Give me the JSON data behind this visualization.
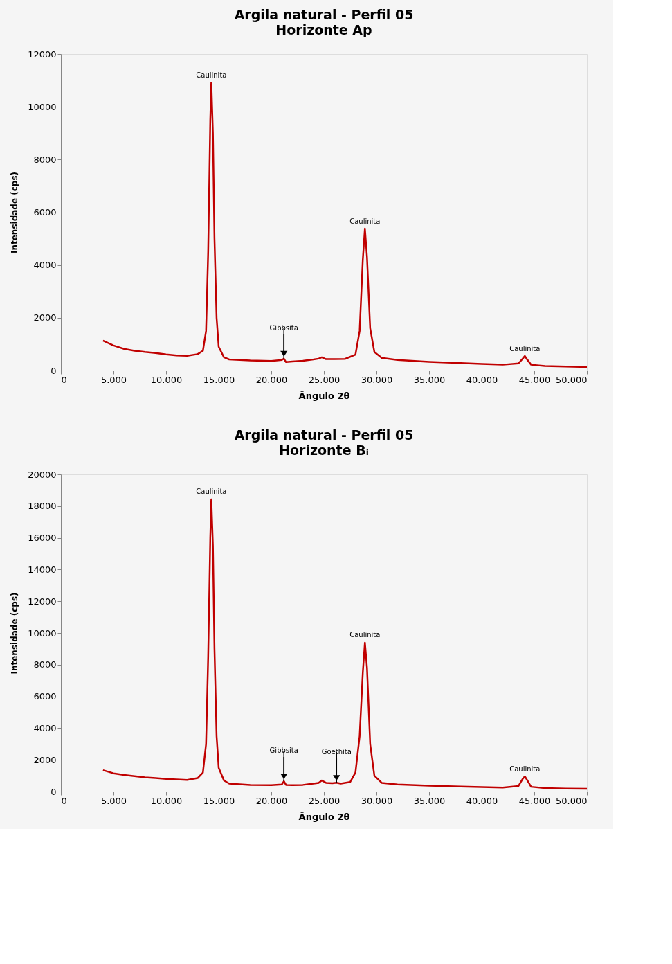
{
  "chart_data": [
    {
      "type": "line",
      "title": "Argila natural - Perfil 05",
      "subtitle": "Horizonte  Ap",
      "xlabel": "Ângulo 2θ",
      "ylabel": "Intensidade (cps)",
      "x": [
        4000,
        5000,
        6000,
        7000,
        8000,
        9000,
        10000,
        11000,
        12000,
        13000,
        13500,
        13800,
        14000,
        14200,
        14300,
        14450,
        14600,
        14800,
        15000,
        15500,
        16000,
        18000,
        20000,
        21000,
        21200,
        21400,
        22000,
        23000,
        24000,
        24500,
        24800,
        25200,
        26000,
        27000,
        28000,
        28400,
        28700,
        28900,
        29100,
        29400,
        29800,
        30500,
        32000,
        35000,
        38000,
        40000,
        42000,
        43500,
        43900,
        44100,
        44300,
        44700,
        46000,
        48000,
        50000
      ],
      "series": [
        {
          "color": "#c00000",
          "values": [
            1130,
            950,
            820,
            750,
            700,
            660,
            610,
            570,
            560,
            620,
            750,
            1500,
            4500,
            9500,
            10920,
            9000,
            5000,
            2000,
            900,
            500,
            420,
            380,
            360,
            400,
            450,
            320,
            340,
            370,
            420,
            450,
            500,
            430,
            430,
            440,
            600,
            1500,
            4200,
            5380,
            4300,
            1600,
            700,
            480,
            400,
            330,
            280,
            250,
            220,
            270,
            450,
            550,
            430,
            220,
            170,
            150,
            130
          ]
        }
      ],
      "xlim": [
        0,
        50000
      ],
      "xticks": [
        0,
        {
          "value": 5000,
          "label": "5.000"
        },
        {
          "value": 10000,
          "label": "10.000"
        },
        {
          "value": 15000,
          "label": "15.000"
        },
        {
          "value": 20000,
          "label": "20.000"
        },
        {
          "value": 25000,
          "label": "25.000"
        },
        {
          "value": 30000,
          "label": "30.000"
        },
        {
          "value": 35000,
          "label": "35.000"
        },
        {
          "value": 40000,
          "label": "40.000"
        },
        {
          "value": 45000,
          "label": "45.000"
        },
        {
          "value": 50000,
          "label": "50.000"
        }
      ],
      "ylim": [
        0,
        12000
      ],
      "yticks": [
        0,
        2000,
        4000,
        6000,
        8000,
        10000,
        12000
      ],
      "grid": false,
      "marker": "none",
      "line_style": "solid",
      "annotations": [
        {
          "text": "Caulinita",
          "x": 14300,
          "y": 10920
        },
        {
          "text": "Caulinita",
          "x": 28900,
          "y": 5380
        },
        {
          "text": "Caulinita",
          "x": 44100,
          "y": 550
        },
        {
          "text": "Gibbsita",
          "x": 21200,
          "y": 450
        }
      ]
    },
    {
      "type": "line",
      "title": "Argila natural - Perfil 05",
      "subtitle": "Horizonte  Bᵢ",
      "xlabel": "Ângulo 2θ",
      "ylabel": "Intensidade (cps)",
      "x": [
        4000,
        5000,
        6000,
        7000,
        8000,
        9000,
        10000,
        11000,
        12000,
        13000,
        13500,
        13800,
        14000,
        14200,
        14300,
        14450,
        14600,
        14800,
        15000,
        15500,
        16000,
        18000,
        20000,
        21000,
        21200,
        21400,
        22000,
        23000,
        24000,
        24500,
        24800,
        25200,
        25800,
        26200,
        26600,
        27500,
        28000,
        28400,
        28700,
        28900,
        29100,
        29400,
        29800,
        30500,
        32000,
        35000,
        38000,
        40000,
        42000,
        43500,
        43900,
        44100,
        44300,
        44700,
        46000,
        48000,
        50000
      ],
      "series": [
        {
          "color": "#c00000",
          "values": [
            1350,
            1150,
            1050,
            970,
            900,
            850,
            800,
            760,
            730,
            850,
            1200,
            3000,
            8500,
            16000,
            18430,
            15500,
            9000,
            3500,
            1500,
            700,
            500,
            420,
            400,
            450,
            650,
            420,
            400,
            420,
            500,
            550,
            700,
            550,
            520,
            560,
            500,
            600,
            1200,
            3500,
            7500,
            9390,
            7800,
            3000,
            1000,
            550,
            450,
            370,
            320,
            280,
            250,
            350,
            800,
            960,
            750,
            300,
            220,
            190,
            170
          ]
        }
      ],
      "xlim": [
        0,
        50000
      ],
      "xticks": [
        0,
        {
          "value": 5000,
          "label": "5.000"
        },
        {
          "value": 10000,
          "label": "10.000"
        },
        {
          "value": 15000,
          "label": "15.000"
        },
        {
          "value": 20000,
          "label": "20.000"
        },
        {
          "value": 25000,
          "label": "25.000"
        },
        {
          "value": 30000,
          "label": "30.000"
        },
        {
          "value": 35000,
          "label": "35.000"
        },
        {
          "value": 40000,
          "label": "40.000"
        },
        {
          "value": 45000,
          "label": "45.000"
        },
        {
          "value": 50000,
          "label": "50.000"
        }
      ],
      "ylim": [
        0,
        20000
      ],
      "yticks": [
        0,
        2000,
        4000,
        6000,
        8000,
        10000,
        12000,
        14000,
        16000,
        18000,
        20000
      ],
      "grid": false,
      "marker": "none",
      "line_style": "solid",
      "annotations": [
        {
          "text": "Caulinita",
          "x": 14300,
          "y": 18430
        },
        {
          "text": "Caulinita",
          "x": 28900,
          "y": 9390
        },
        {
          "text": "Caulinita",
          "x": 44100,
          "y": 960
        },
        {
          "text": "Gibbsita",
          "x": 21200,
          "y": 650
        },
        {
          "text": "Goethita",
          "x": 26200,
          "y": 560
        }
      ]
    }
  ]
}
